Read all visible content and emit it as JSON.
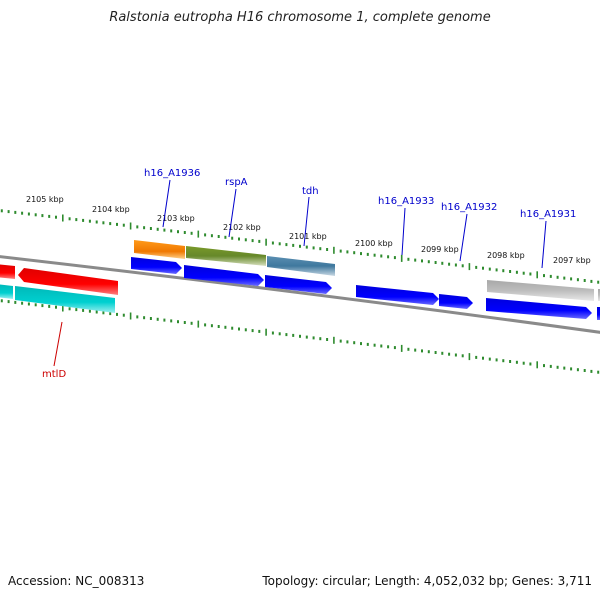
{
  "title": "Ralstonia eutropha H16 chromosome 1, complete genome",
  "footer": {
    "accession": "Accession: NC_008313",
    "summary": "Topology: circular; Length: 4,052,032 bp; Genes: 3,711"
  },
  "colors": {
    "backbone": "#8a8a8a",
    "tick": "#2e8b2e",
    "cds": "#0000e6",
    "label": "#0000cc",
    "label_red": "#cc0000"
  },
  "kbp_labels": [
    "2105 kbp",
    "2104 kbp",
    "2103 kbp",
    "2102 kbp",
    "2101 kbp",
    "2100 kbp",
    "2099 kbp",
    "2098 kbp",
    "2097 kbp"
  ],
  "gene_labels": [
    "h16_A1936",
    "rspA",
    "tdh",
    "h16_A1933",
    "h16_A1932",
    "h16_A1931",
    "mtlD"
  ]
}
